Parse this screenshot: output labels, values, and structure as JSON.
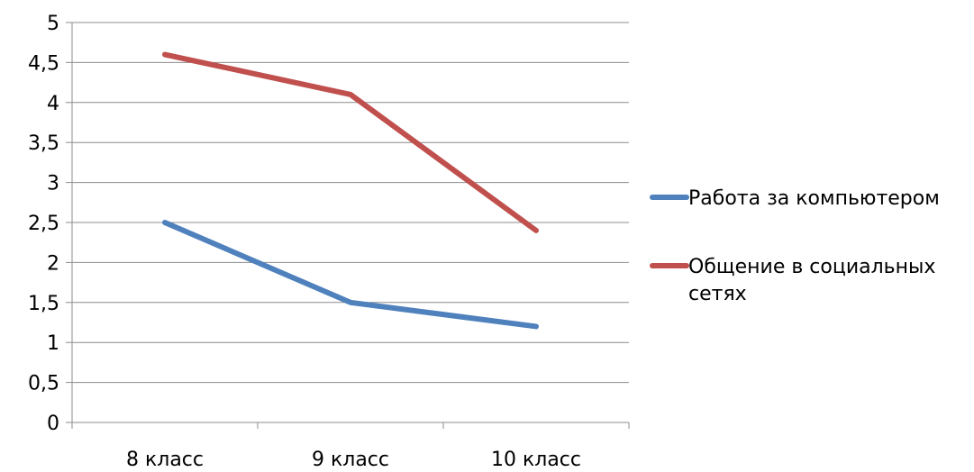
{
  "chart_data": {
    "type": "line",
    "categories": [
      "8 класс",
      "9 класс",
      "10 класс"
    ],
    "series": [
      {
        "name": "Работа за компьютером",
        "values": [
          2.5,
          1.5,
          1.2
        ],
        "color": "#4f81bd"
      },
      {
        "name": "Общение в социальных сетях",
        "name_lines": [
          "Общение в социальных",
          "сетях"
        ],
        "values": [
          4.6,
          4.1,
          2.4
        ],
        "color": "#c0504d"
      }
    ],
    "ylim": [
      0,
      5
    ],
    "yticks": [
      "0",
      "0,5",
      "1",
      "1,5",
      "2",
      "2,5",
      "3",
      "3,5",
      "4",
      "4,5",
      "5"
    ],
    "grid": true,
    "legend_position": "right"
  }
}
